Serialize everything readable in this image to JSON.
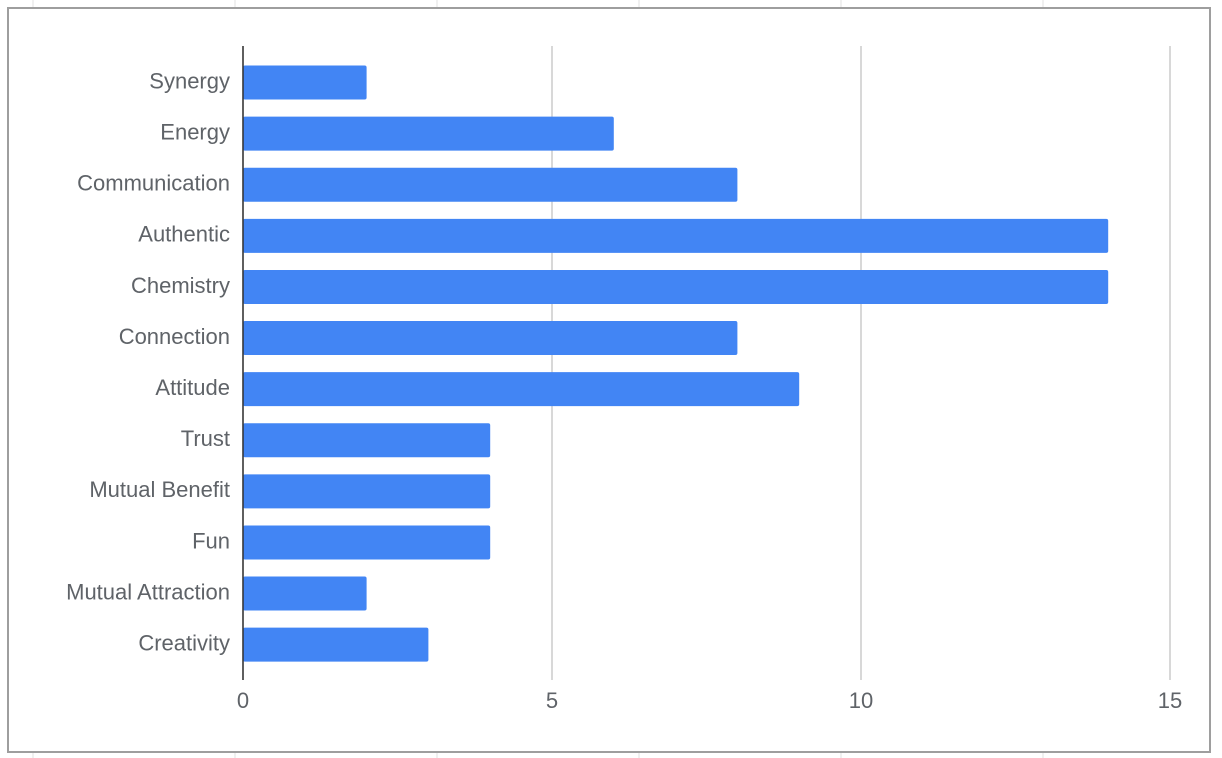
{
  "chart_data": {
    "type": "bar",
    "orientation": "horizontal",
    "categories": [
      "Synergy",
      "Energy",
      "Communication",
      "Authentic",
      "Chemistry",
      "Connection",
      "Attitude",
      "Trust",
      "Mutual Benefit",
      "Fun",
      "Mutual Attraction",
      "Creativity"
    ],
    "values": [
      2,
      6,
      8,
      14,
      14,
      8,
      9,
      4,
      4,
      4,
      2,
      3
    ],
    "color": "#4285f4",
    "xlim": [
      0,
      15
    ],
    "xticks": [
      0,
      5,
      10,
      15
    ],
    "grid": true
  }
}
